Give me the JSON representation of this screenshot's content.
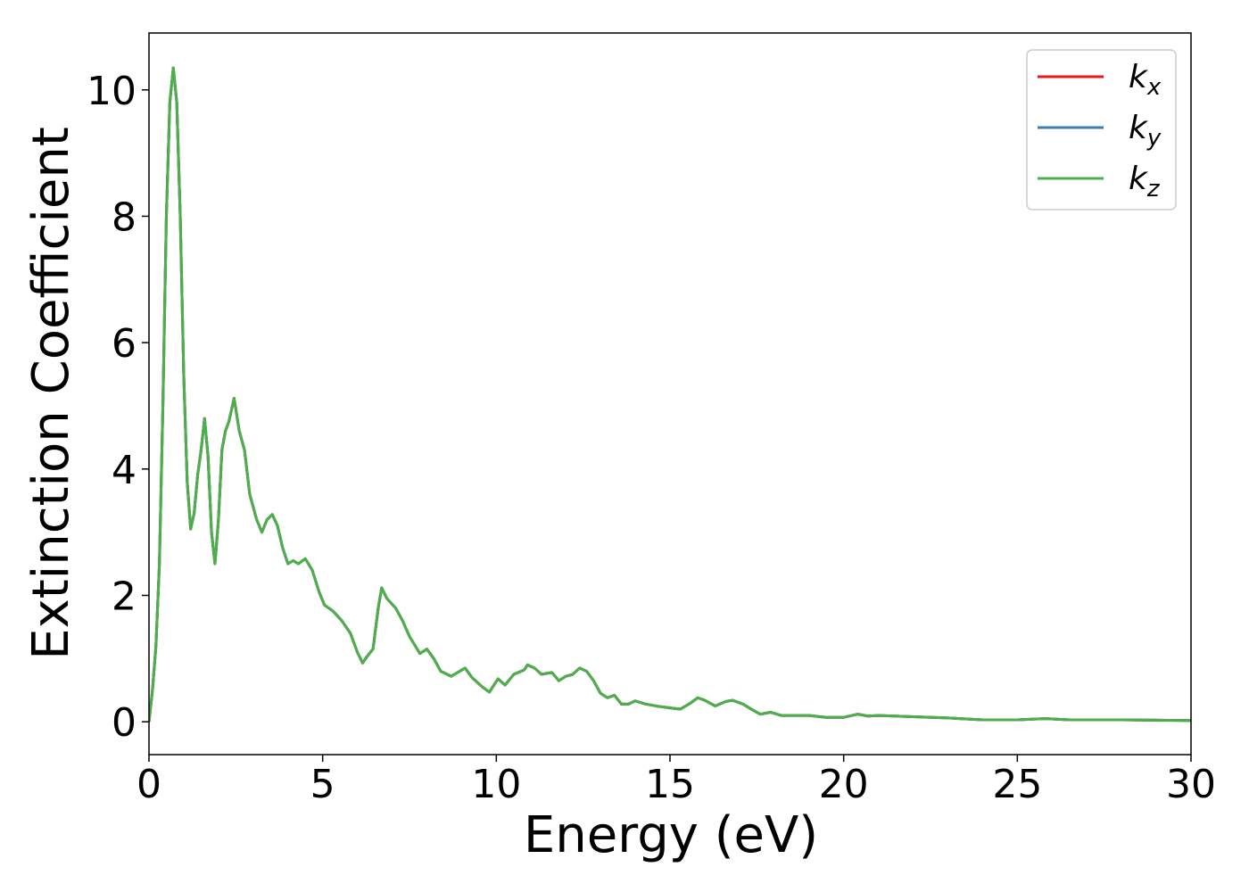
{
  "chart_data": {
    "type": "line",
    "xlabel": "Energy (eV)",
    "ylabel": "Extinction Coefficient",
    "xlim": [
      0,
      30
    ],
    "ylim": [
      -0.52,
      10.9
    ],
    "xticks": [
      0,
      5,
      10,
      15,
      20,
      25,
      30
    ],
    "yticks": [
      0,
      2,
      4,
      6,
      8,
      10
    ],
    "grid": false,
    "legend": "upper right",
    "x": [
      0,
      0.1,
      0.2,
      0.3,
      0.4,
      0.5,
      0.6,
      0.7,
      0.8,
      0.9,
      1.0,
      1.1,
      1.2,
      1.3,
      1.4,
      1.5,
      1.6,
      1.7,
      1.8,
      1.9,
      2.0,
      2.1,
      2.2,
      2.3,
      2.45,
      2.6,
      2.75,
      2.9,
      3.1,
      3.25,
      3.4,
      3.55,
      3.7,
      3.85,
      4.0,
      4.15,
      4.3,
      4.5,
      4.7,
      4.9,
      5.05,
      5.3,
      5.55,
      5.8,
      6.0,
      6.15,
      6.3,
      6.45,
      6.6,
      6.7,
      6.85,
      7.1,
      7.3,
      7.5,
      7.8,
      8.0,
      8.2,
      8.4,
      8.7,
      9.1,
      9.3,
      9.6,
      9.8,
      10.05,
      10.25,
      10.5,
      10.8,
      10.9,
      11.1,
      11.3,
      11.6,
      11.8,
      12.0,
      12.2,
      12.4,
      12.6,
      12.8,
      13.0,
      13.2,
      13.4,
      13.6,
      13.8,
      14.0,
      14.3,
      14.6,
      15.0,
      15.3,
      15.6,
      15.8,
      16.0,
      16.3,
      16.6,
      16.8,
      17.1,
      17.4,
      17.6,
      17.9,
      18.2,
      19.0,
      19.5,
      20.0,
      20.4,
      20.7,
      21.0,
      22.0,
      23.0,
      24.0,
      25.0,
      25.8,
      26.5,
      28.0,
      30.0
    ],
    "series": [
      {
        "name": "kx",
        "color": "#e41a1c",
        "values": [
          0,
          0.5,
          1.2,
          2.5,
          5.0,
          8.0,
          9.8,
          10.35,
          9.8,
          8.0,
          5.5,
          3.8,
          3.05,
          3.3,
          3.9,
          4.3,
          4.8,
          4.2,
          3.0,
          2.5,
          3.2,
          4.3,
          4.6,
          4.75,
          5.12,
          4.6,
          4.3,
          3.6,
          3.2,
          3.0,
          3.2,
          3.28,
          3.1,
          2.75,
          2.5,
          2.55,
          2.5,
          2.58,
          2.4,
          2.05,
          1.85,
          1.75,
          1.6,
          1.4,
          1.1,
          0.93,
          1.05,
          1.15,
          1.8,
          2.12,
          1.95,
          1.8,
          1.6,
          1.35,
          1.08,
          1.15,
          1.0,
          0.8,
          0.72,
          0.85,
          0.7,
          0.55,
          0.47,
          0.68,
          0.58,
          0.75,
          0.82,
          0.9,
          0.85,
          0.75,
          0.78,
          0.65,
          0.72,
          0.75,
          0.85,
          0.8,
          0.65,
          0.45,
          0.38,
          0.42,
          0.28,
          0.28,
          0.33,
          0.28,
          0.25,
          0.22,
          0.2,
          0.3,
          0.38,
          0.34,
          0.25,
          0.32,
          0.34,
          0.28,
          0.18,
          0.12,
          0.15,
          0.1,
          0.1,
          0.07,
          0.07,
          0.12,
          0.09,
          0.1,
          0.08,
          0.06,
          0.03,
          0.03,
          0.05,
          0.03,
          0.03,
          0.02
        ]
      },
      {
        "name": "ky",
        "color": "#377eb8",
        "values": [
          0,
          0.5,
          1.2,
          2.5,
          5.0,
          8.0,
          9.8,
          10.35,
          9.8,
          8.0,
          5.5,
          3.8,
          3.05,
          3.3,
          3.9,
          4.3,
          4.8,
          4.2,
          3.0,
          2.5,
          3.2,
          4.3,
          4.6,
          4.75,
          5.12,
          4.6,
          4.3,
          3.6,
          3.2,
          3.0,
          3.2,
          3.28,
          3.1,
          2.75,
          2.5,
          2.55,
          2.5,
          2.58,
          2.4,
          2.05,
          1.85,
          1.75,
          1.6,
          1.4,
          1.1,
          0.93,
          1.05,
          1.15,
          1.8,
          2.12,
          1.95,
          1.8,
          1.6,
          1.35,
          1.08,
          1.15,
          1.0,
          0.8,
          0.72,
          0.85,
          0.7,
          0.55,
          0.47,
          0.68,
          0.58,
          0.75,
          0.82,
          0.9,
          0.85,
          0.75,
          0.78,
          0.65,
          0.72,
          0.75,
          0.85,
          0.8,
          0.65,
          0.45,
          0.38,
          0.42,
          0.28,
          0.28,
          0.33,
          0.28,
          0.25,
          0.22,
          0.2,
          0.3,
          0.38,
          0.34,
          0.25,
          0.32,
          0.34,
          0.28,
          0.18,
          0.12,
          0.15,
          0.1,
          0.1,
          0.07,
          0.07,
          0.12,
          0.09,
          0.1,
          0.08,
          0.06,
          0.03,
          0.03,
          0.05,
          0.03,
          0.03,
          0.02
        ]
      },
      {
        "name": "kz",
        "color": "#4daf4a",
        "values": [
          0,
          0.5,
          1.2,
          2.5,
          5.0,
          8.0,
          9.8,
          10.35,
          9.8,
          8.0,
          5.5,
          3.8,
          3.05,
          3.3,
          3.9,
          4.3,
          4.8,
          4.2,
          3.0,
          2.5,
          3.2,
          4.3,
          4.6,
          4.75,
          5.12,
          4.6,
          4.3,
          3.6,
          3.2,
          3.0,
          3.2,
          3.28,
          3.1,
          2.75,
          2.5,
          2.55,
          2.5,
          2.58,
          2.4,
          2.05,
          1.85,
          1.75,
          1.6,
          1.4,
          1.1,
          0.93,
          1.05,
          1.15,
          1.8,
          2.12,
          1.95,
          1.8,
          1.6,
          1.35,
          1.08,
          1.15,
          1.0,
          0.8,
          0.72,
          0.85,
          0.7,
          0.55,
          0.47,
          0.68,
          0.58,
          0.75,
          0.82,
          0.9,
          0.85,
          0.75,
          0.78,
          0.65,
          0.72,
          0.75,
          0.85,
          0.8,
          0.65,
          0.45,
          0.38,
          0.42,
          0.28,
          0.28,
          0.33,
          0.28,
          0.25,
          0.22,
          0.2,
          0.3,
          0.38,
          0.34,
          0.25,
          0.32,
          0.34,
          0.28,
          0.18,
          0.12,
          0.15,
          0.1,
          0.1,
          0.07,
          0.07,
          0.12,
          0.09,
          0.1,
          0.08,
          0.06,
          0.03,
          0.03,
          0.05,
          0.03,
          0.03,
          0.02
        ]
      }
    ]
  }
}
